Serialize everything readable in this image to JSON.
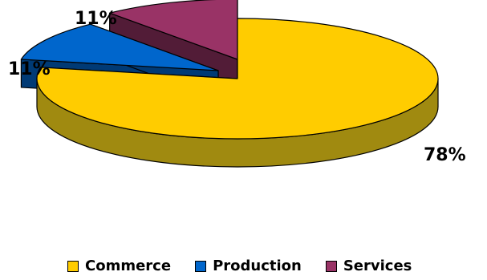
{
  "chart_data": {
    "type": "pie",
    "style": "3d-exploded",
    "series": [
      {
        "name": "Commerce",
        "value": 78,
        "label": "78%",
        "color": "#ffcc00",
        "side_color": "#a08a10"
      },
      {
        "name": "Production",
        "value": 11,
        "label": "11%",
        "color": "#0066cc",
        "side_color": "#003a75"
      },
      {
        "name": "Services",
        "value": 11,
        "label": "11%",
        "color": "#993366",
        "side_color": "#521c37"
      }
    ],
    "legend_position": "bottom"
  }
}
